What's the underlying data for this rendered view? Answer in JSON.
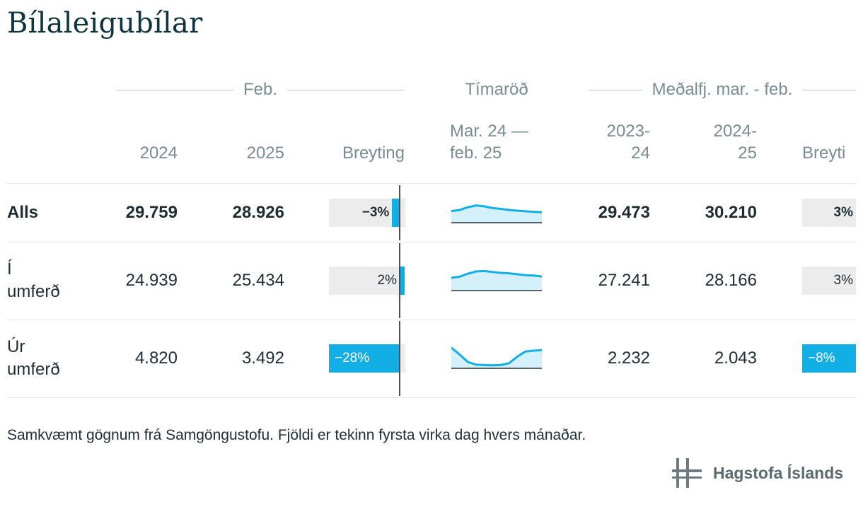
{
  "title": "Bílaleigubílar",
  "groups": {
    "feb": "Feb.",
    "timarod": "Tímaröð",
    "medal": "Meðalfj. mar. - feb."
  },
  "columns": {
    "c2024": "2024",
    "c2025": "2025",
    "breyting": "Breyting",
    "spark_l1": "Mar. 24 —",
    "spark_l2": "feb. 25",
    "avg1_l1": "2023-",
    "avg1_l2": "24",
    "avg2_l1": "2024-",
    "avg2_l2": "25",
    "breyting2": "Breyti"
  },
  "chart_data": {
    "type": "table",
    "columns": [
      "2024",
      "2025",
      "Breyting",
      "Mar. 24 — feb. 25",
      "2023-24",
      "2024-25",
      "Breyti"
    ],
    "rows": [
      {
        "label_l1": "Alls",
        "label_l2": "",
        "v2024": "29.759",
        "v2025": "28.926",
        "change": -3,
        "change_label": "−3%",
        "spark": [
          0.45,
          0.5,
          0.62,
          0.7,
          0.66,
          0.58,
          0.55,
          0.5,
          0.47,
          0.44,
          0.42,
          0.4
        ],
        "avg1": "29.473",
        "avg2": "30.210",
        "change2": 3,
        "change2_label": "3%"
      },
      {
        "label_l1": "Í",
        "label_l2": "umferð",
        "v2024": "24.939",
        "v2025": "25.434",
        "change": 2,
        "change_label": "2%",
        "spark": [
          0.5,
          0.55,
          0.68,
          0.78,
          0.8,
          0.76,
          0.72,
          0.7,
          0.66,
          0.62,
          0.6,
          0.56
        ],
        "avg1": "27.241",
        "avg2": "28.166",
        "change2": 3,
        "change2_label": "3%"
      },
      {
        "label_l1": "Úr",
        "label_l2": "umferð",
        "v2024": "4.820",
        "v2025": "3.492",
        "change": -28,
        "change_label": "−28%",
        "spark": [
          0.85,
          0.55,
          0.22,
          0.1,
          0.08,
          0.07,
          0.08,
          0.16,
          0.45,
          0.68,
          0.72,
          0.74
        ],
        "avg1": "2.232",
        "avg2": "2.043",
        "change2": -8,
        "change2_label": "−8%"
      }
    ]
  },
  "footer": "Samkvæmt gögnum frá Samgöngustofu. Fjöldi er tekinn fyrsta virka dag hvers mánaðar.",
  "logo": {
    "text": "Hagstofa Íslands",
    "icon": "hagstofa-logo-icon"
  },
  "colors": {
    "accent": "#12aee6",
    "bar_bg": "#ececec",
    "spark_fill": "#d4f0fb",
    "title": "#0e3440"
  }
}
